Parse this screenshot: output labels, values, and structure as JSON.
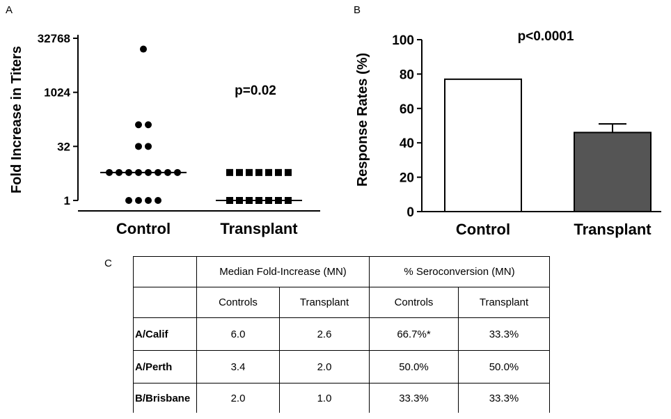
{
  "panels": {
    "a": "A",
    "b": "B",
    "c": "C"
  },
  "chart_data": [
    {
      "type": "scatter",
      "panel": "A",
      "ylabel": "Fold Increase in Titers",
      "yscale": "log2",
      "ylim": [
        1,
        32768
      ],
      "yticks": [
        "1",
        "32",
        "1024",
        "32768"
      ],
      "categories": [
        "Control",
        "Transplant"
      ],
      "annotation": "p=0.02",
      "groups": [
        {
          "category": "Control",
          "marker": "circle",
          "values": [
            16384,
            128,
            128,
            32,
            32,
            6,
            6,
            6,
            6,
            6,
            6,
            6,
            6,
            1,
            1,
            1,
            1
          ],
          "median": 6
        },
        {
          "category": "Transplant",
          "marker": "square",
          "values": [
            6,
            6,
            6,
            6,
            6,
            6,
            6,
            1,
            1,
            1,
            1,
            1,
            1,
            1
          ],
          "median": 1
        }
      ]
    },
    {
      "type": "bar",
      "panel": "B",
      "ylabel": "Response Rates (%)",
      "ylim": [
        0,
        100
      ],
      "yticks": [
        "0",
        "20",
        "40",
        "60",
        "80",
        "100"
      ],
      "categories": [
        "Control",
        "Transplant"
      ],
      "values": [
        77,
        46
      ],
      "errors": [
        0,
        5
      ],
      "colors": [
        "#ffffff",
        "#555555"
      ],
      "annotation": "p<0.0001"
    }
  ],
  "table": {
    "group_headers": [
      "Median Fold-Increase (MN)",
      "% Seroconversion (MN)"
    ],
    "sub_headers": [
      "Controls",
      "Transplant",
      "Controls",
      "Transplant"
    ],
    "rows": [
      {
        "label": "A/Calif",
        "cells": [
          "6.0",
          "2.6",
          "66.7%*",
          "33.3%"
        ]
      },
      {
        "label": "A/Perth",
        "cells": [
          "3.4",
          "2.0",
          "50.0%",
          "50.0%"
        ]
      },
      {
        "label": "B/Brisbane",
        "cells": [
          "2.0",
          "1.0",
          "33.3%",
          "33.3%"
        ]
      }
    ]
  }
}
